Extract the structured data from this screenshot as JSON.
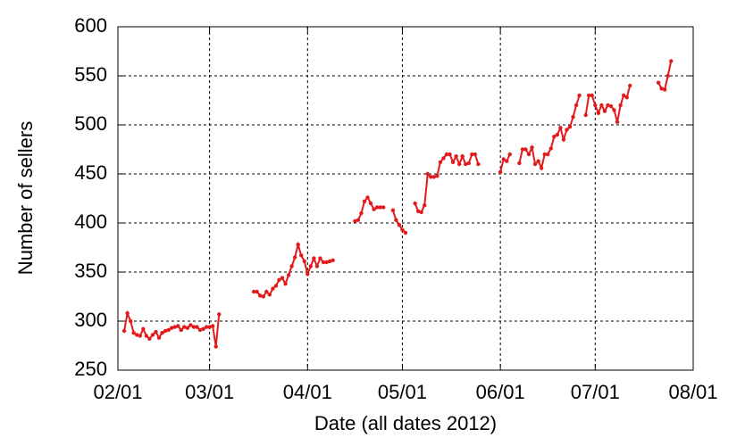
{
  "chart_data": {
    "type": "line",
    "xlabel": "Date (all dates 2012)",
    "ylabel": "Number of sellers",
    "x": [
      "02/03",
      "02/04",
      "02/05",
      "02/06",
      "02/07",
      "02/08",
      "02/09",
      "02/10",
      "02/11",
      "02/12",
      "02/13",
      "02/14",
      "02/15",
      "02/16",
      "02/17",
      "02/18",
      "02/19",
      "02/20",
      "02/21",
      "02/22",
      "02/23",
      "02/24",
      "02/25",
      "02/26",
      "02/27",
      "02/28",
      "02/29",
      "03/01",
      "03/02",
      "03/03",
      "03/04",
      "03/10",
      "03/15",
      "03/16",
      "03/17",
      "03/18",
      "03/19",
      "03/20",
      "03/21",
      "03/22",
      "03/23",
      "03/24",
      "03/25",
      "03/26",
      "03/27",
      "03/28",
      "03/29",
      "03/30",
      "03/31",
      "04/01",
      "04/02",
      "04/03",
      "04/04",
      "04/05",
      "04/06",
      "04/07",
      "04/08",
      "04/09",
      "04/12",
      "04/16",
      "04/17",
      "04/18",
      "04/19",
      "04/20",
      "04/21",
      "04/22",
      "04/23",
      "04/24",
      "04/25",
      "04/27",
      "04/28",
      "04/29",
      "04/30",
      "05/01",
      "05/02",
      "05/04",
      "05/05",
      "05/06",
      "05/07",
      "05/08",
      "05/09",
      "05/10",
      "05/11",
      "05/12",
      "05/13",
      "05/14",
      "05/15",
      "05/16",
      "05/17",
      "05/18",
      "05/19",
      "05/20",
      "05/21",
      "05/22",
      "05/23",
      "05/24",
      "05/25",
      "05/29",
      "06/01",
      "06/02",
      "06/03",
      "06/04",
      "06/05",
      "06/07",
      "06/08",
      "06/09",
      "06/10",
      "06/11",
      "06/12",
      "06/13",
      "06/14",
      "06/15",
      "06/16",
      "06/17",
      "06/18",
      "06/19",
      "06/20",
      "06/21",
      "06/22",
      "06/23",
      "06/24",
      "06/25",
      "06/26",
      "06/27",
      "06/28",
      "06/29",
      "06/30",
      "07/01",
      "07/02",
      "07/03",
      "07/04",
      "07/05",
      "07/06",
      "07/07",
      "07/08",
      "07/09",
      "07/10",
      "07/11",
      "07/12",
      "07/16",
      "07/21",
      "07/22",
      "07/23",
      "07/24",
      "07/25"
    ],
    "series": [
      {
        "name": "sellers",
        "color": "#e31a1c",
        "values": [
          290,
          308,
          300,
          288,
          286,
          285,
          292,
          285,
          282,
          286,
          289,
          283,
          288,
          290,
          291,
          293,
          294,
          295,
          291,
          294,
          293,
          296,
          294,
          294,
          291,
          292,
          294,
          294,
          295,
          274,
          307,
          null,
          330,
          330,
          326,
          325,
          330,
          327,
          333,
          336,
          342,
          344,
          338,
          347,
          356,
          365,
          378,
          367,
          361,
          348,
          356,
          364,
          356,
          364,
          360,
          360,
          361,
          362,
          null,
          402,
          403,
          410,
          422,
          426,
          420,
          414,
          416,
          416,
          416,
          null,
          413,
          403,
          398,
          393,
          390,
          null,
          420,
          412,
          411,
          418,
          450,
          447,
          447,
          448,
          462,
          466,
          470,
          470,
          462,
          468,
          460,
          468,
          460,
          461,
          470,
          470,
          460,
          null,
          452,
          465,
          463,
          470,
          null,
          461,
          475,
          475,
          470,
          477,
          460,
          463,
          456,
          470,
          470,
          476,
          488,
          490,
          497,
          485,
          495,
          498,
          508,
          520,
          530,
          null,
          510,
          530,
          530,
          520,
          512,
          520,
          514,
          520,
          519,
          515,
          503,
          520,
          530,
          528,
          540,
          null,
          543,
          537,
          536,
          550,
          565
        ]
      }
    ],
    "xlim": [
      "02/01",
      "08/01"
    ],
    "xticks": [
      "02/01",
      "03/01",
      "04/01",
      "05/01",
      "06/01",
      "07/01",
      "08/01"
    ],
    "ylim": [
      250,
      600
    ],
    "yticks": [
      250,
      300,
      350,
      400,
      450,
      500,
      550,
      600
    ],
    "grid": true
  }
}
